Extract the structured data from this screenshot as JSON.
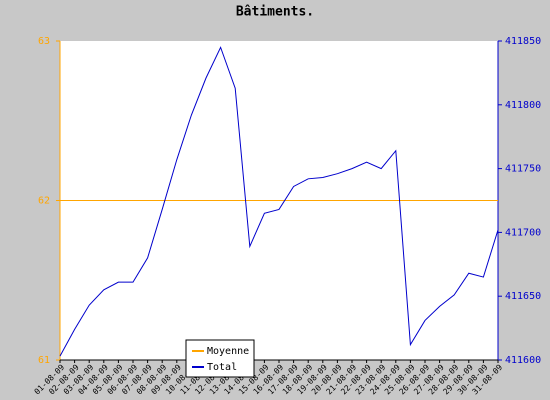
{
  "chart_data": {
    "type": "line",
    "title": "Bâtiments.",
    "categories": [
      "01-08-09",
      "02-08-09",
      "03-08-09",
      "04-08-09",
      "05-08-09",
      "06-08-09",
      "07-08-09",
      "08-08-09",
      "09-08-09",
      "10-08-09",
      "11-08-09",
      "12-08-09",
      "13-08-09",
      "14-08-09",
      "15-08-09",
      "16-08-09",
      "17-08-09",
      "18-08-09",
      "19-08-09",
      "20-08-09",
      "21-08-09",
      "22-08-09",
      "23-08-09",
      "24-08-09",
      "25-08-09",
      "26-08-09",
      "27-08-09",
      "28-08-09",
      "29-08-09",
      "30-08-09",
      "31-08-09"
    ],
    "series": [
      {
        "name": "Moyenne",
        "color": "#ffa500",
        "axis": "y",
        "values": [
          62,
          62,
          62,
          62,
          62,
          62,
          62,
          62,
          62,
          62,
          62,
          62,
          62,
          62,
          62,
          62,
          62,
          62,
          62,
          62,
          62,
          62,
          62,
          62,
          62,
          62,
          62,
          62,
          62,
          62,
          62
        ]
      },
      {
        "name": "Total",
        "color": "#0000cc",
        "axis": "y2",
        "values": [
          411603,
          411624,
          411643,
          411655,
          411661,
          411661,
          411680,
          411718,
          411757,
          411792,
          411821,
          411845,
          411813,
          411689,
          411715,
          411718,
          411736,
          411742,
          411743,
          411746,
          411750,
          411755,
          411750,
          411764,
          411612,
          411631,
          411642,
          411651,
          411668,
          411665,
          411702
        ]
      }
    ],
    "ylim": [
      61,
      63
    ],
    "yticks": [
      61,
      62,
      63
    ],
    "y2lim": [
      411600,
      411850
    ],
    "y2ticks": [
      411600,
      411650,
      411700,
      411750,
      411800,
      411850
    ],
    "legend": "bottom"
  }
}
